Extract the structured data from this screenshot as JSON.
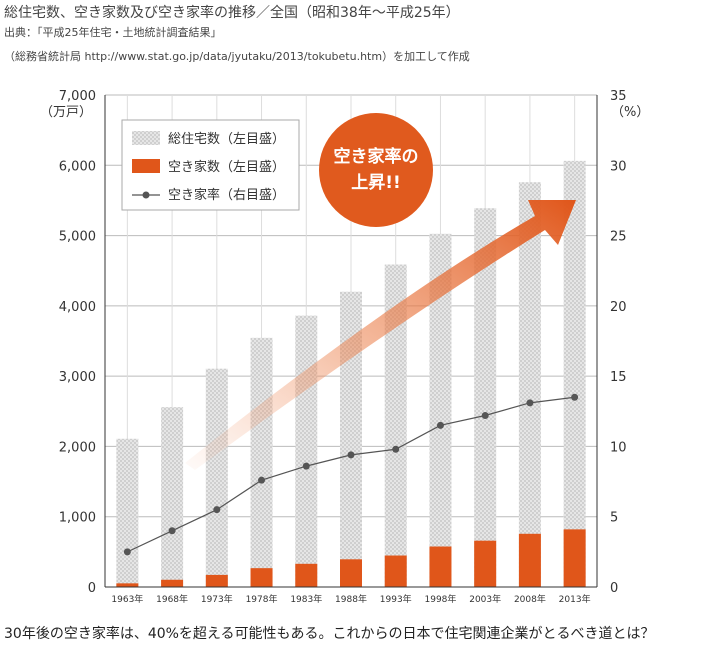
{
  "header": {
    "title": "総住宅数、空き家数及び空き家率の推移／全国（昭和38年〜平成25年）",
    "source_line1": "出典：「平成25年住宅・土地統計調査結果」",
    "source_line2": "（総務省統計局 http://www.stat.go.jp/data/jyutaku/2013/tokubetu.htm）を加工して作成"
  },
  "caption": "30年後の空き家率は、40%を超える可能性もある。これからの日本で住宅関連企業がとるべき道とは？",
  "callout": {
    "line1": "空き家率の",
    "line2": "上昇!!",
    "color": "#e05a1e"
  },
  "colors": {
    "total_bar": "#d9d9d9",
    "vacant_bar": "#e0561a",
    "rate_line": "#555555",
    "arrow": "#e8621e"
  },
  "chart_data": {
    "type": "bar",
    "categories": [
      "1963年",
      "1968年",
      "1973年",
      "1978年",
      "1983年",
      "1988年",
      "1993年",
      "1998年",
      "2003年",
      "2008年",
      "2013年"
    ],
    "series": [
      {
        "name": "総住宅数（左目盛）",
        "axis": "left",
        "kind": "bar",
        "values": [
          2109,
          2559,
          3106,
          3545,
          3861,
          4201,
          4588,
          5025,
          5389,
          5759,
          6063
        ]
      },
      {
        "name": "空き家数（左目盛）",
        "axis": "left",
        "kind": "bar",
        "values": [
          52,
          103,
          172,
          268,
          330,
          394,
          448,
          576,
          659,
          757,
          820
        ]
      },
      {
        "name": "空き家率（右目盛）",
        "axis": "right",
        "kind": "line",
        "values": [
          2.5,
          4.0,
          5.5,
          7.6,
          8.6,
          9.4,
          9.8,
          11.5,
          12.2,
          13.1,
          13.5
        ]
      }
    ],
    "yleft": {
      "unit_label": "（万戸）",
      "ylim": [
        0,
        7000
      ],
      "ticks": [
        "0",
        "1,000",
        "2,000",
        "3,000",
        "4,000",
        "5,000",
        "6,000",
        "7,000"
      ]
    },
    "yright": {
      "unit_label": "（%）",
      "ylim": [
        0,
        35
      ],
      "ticks": [
        "0",
        "5",
        "10",
        "15",
        "20",
        "25",
        "30",
        "35"
      ]
    },
    "legend_position": "top-left",
    "grid": true
  }
}
